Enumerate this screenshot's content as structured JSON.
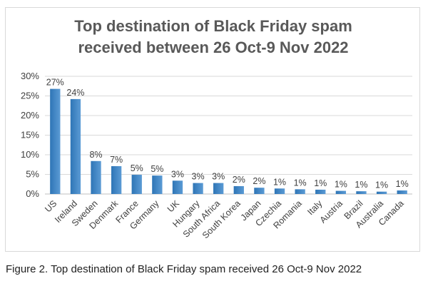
{
  "chart_data": {
    "type": "bar",
    "title_lines": [
      "Top destination of Black Friday spam",
      "received between 26 Oct-9 Nov 2022"
    ],
    "categories": [
      "US",
      "Ireland",
      "Sweden",
      "Denmark",
      "France",
      "Germany",
      "UK",
      "Hungary",
      "South Africa",
      "South Korea",
      "Japan",
      "Czechia",
      "Romania",
      "Italy",
      "Austria",
      "Brazil",
      "Australia",
      "Canada"
    ],
    "values": [
      26.8,
      24.2,
      8.4,
      7.1,
      4.9,
      4.7,
      3.4,
      2.8,
      2.8,
      2.0,
      1.6,
      1.4,
      1.2,
      1.1,
      0.8,
      0.7,
      0.6,
      0.9
    ],
    "data_labels": [
      "27%",
      "24%",
      "8%",
      "7%",
      "5%",
      "5%",
      "3%",
      "3%",
      "3%",
      "2%",
      "2%",
      "1%",
      "1%",
      "1%",
      "1%",
      "1%",
      "1%",
      "1%"
    ],
    "yticks": [
      "0%",
      "5%",
      "10%",
      "15%",
      "20%",
      "25%",
      "30%"
    ],
    "ylim": [
      0,
      30
    ],
    "grid": true,
    "legend": "none",
    "bar_color": "#5b9bd5",
    "bar_color_dark": "#2e75b6"
  },
  "caption": "Figure 2. Top destination of Black Friday spam received 26 Oct-9 Nov 2022"
}
